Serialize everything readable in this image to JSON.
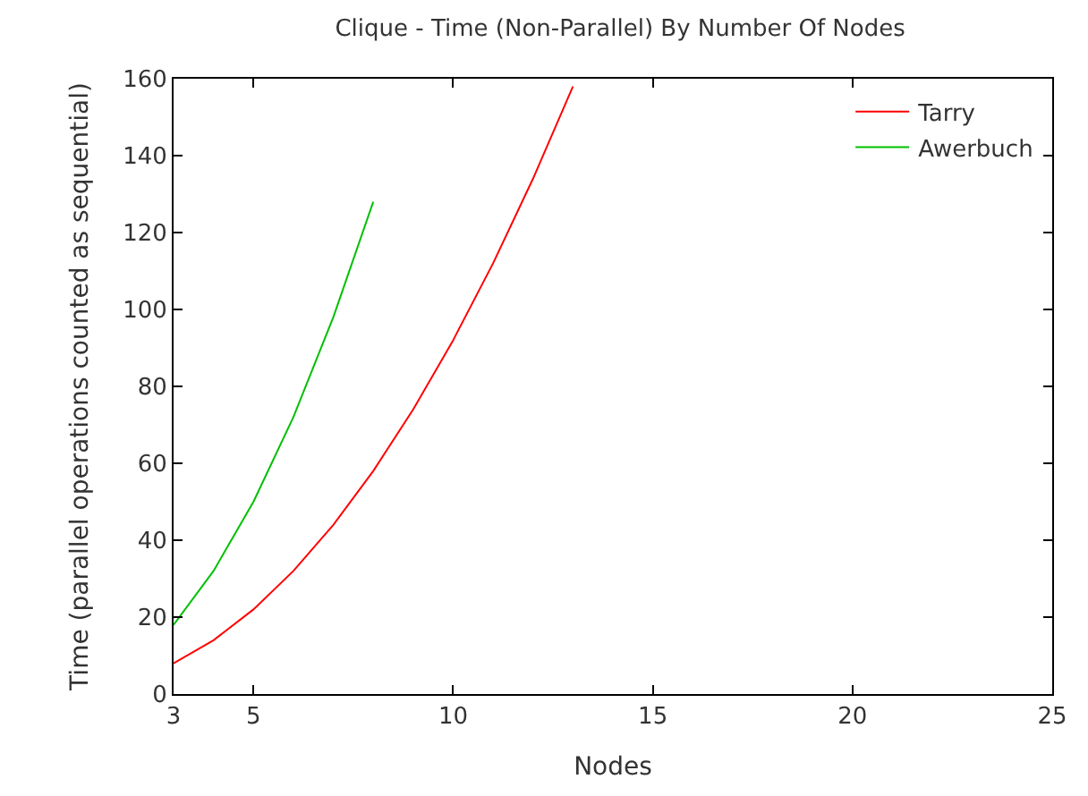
{
  "chart_data": {
    "type": "line",
    "title": "Clique - Time (Non-Parallel) By Number Of Nodes",
    "xlabel": "Nodes",
    "ylabel": "Time (parallel operations counted as sequential)",
    "series": [
      {
        "name": "Tarry",
        "color": "#ff0000",
        "x": [
          3,
          4,
          5,
          6,
          7,
          8,
          9,
          10,
          11,
          12,
          13
        ],
        "values": [
          8,
          14,
          22,
          32,
          44,
          58,
          74,
          92,
          112,
          134,
          158
        ]
      },
      {
        "name": "Awerbuch",
        "color": "#00c000",
        "x": [
          3,
          4,
          5,
          6,
          7,
          8
        ],
        "values": [
          18,
          32,
          50,
          72,
          98,
          128
        ]
      }
    ],
    "xlim": [
      3,
      25
    ],
    "xticks": [
      3,
      5,
      10,
      15,
      20,
      25
    ],
    "ylim": [
      0,
      160
    ],
    "yticks": [
      0,
      20,
      40,
      60,
      80,
      100,
      120,
      140,
      160
    ],
    "legend": "top right",
    "marker": "none",
    "line_style": "solid"
  }
}
